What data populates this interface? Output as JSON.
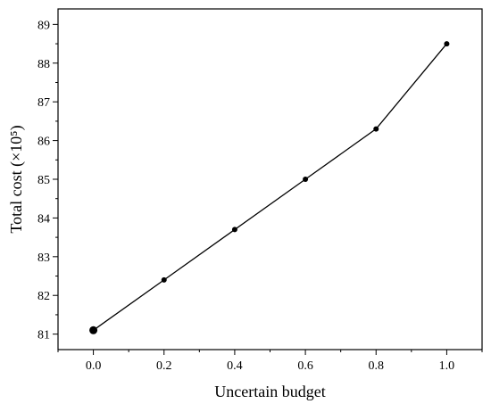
{
  "chart_data": {
    "type": "line",
    "title": "",
    "xlabel": "Uncertain budget",
    "ylabel": "Total cost (×10⁵)",
    "xlim": [
      -0.1,
      1.1
    ],
    "ylim": [
      80.6,
      89.4
    ],
    "x_ticks": [
      "0.0",
      "0.2",
      "0.4",
      "0.6",
      "0.8",
      "1.0"
    ],
    "y_ticks": [
      "81",
      "82",
      "83",
      "84",
      "85",
      "86",
      "87",
      "88",
      "89"
    ],
    "grid": false,
    "legend": "none",
    "series": [
      {
        "x": [
          0.0,
          0.2,
          0.4,
          0.6,
          0.8,
          1.0
        ],
        "y": [
          81.1,
          82.4,
          83.7,
          85.0,
          86.3,
          88.5
        ],
        "color": "#000000",
        "marker": "circle"
      }
    ]
  }
}
